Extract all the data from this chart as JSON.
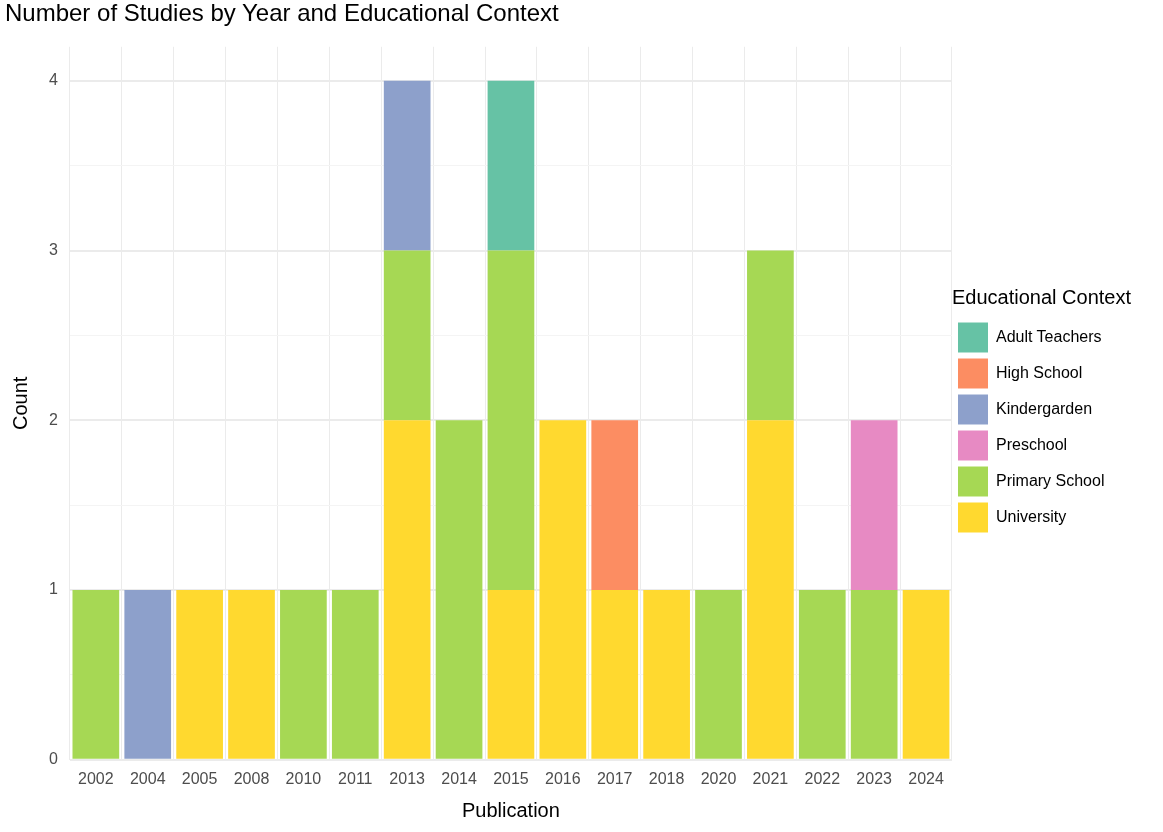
{
  "chart_data": {
    "type": "bar",
    "title": "Number of Studies by Year and Educational Context",
    "xlabel": "Publication",
    "ylabel": "Count",
    "legend_title": "Educational Context",
    "categories": [
      "2002",
      "2004",
      "2005",
      "2008",
      "2010",
      "2011",
      "2013",
      "2014",
      "2015",
      "2016",
      "2017",
      "2018",
      "2020",
      "2021",
      "2022",
      "2023",
      "2024"
    ],
    "stacked": true,
    "ylim": [
      0,
      4.2
    ],
    "yticks": [
      0,
      {
        "value": 0.5,
        "label": null
      },
      1,
      {
        "value": 1.5,
        "label": null
      },
      2,
      {
        "value": 2.5,
        "label": null
      },
      3,
      {
        "value": 3.5,
        "label": null
      },
      4
    ],
    "grid": true,
    "legend": "right",
    "series": [
      {
        "name": "University",
        "color": "#ffd92f",
        "values": [
          null,
          null,
          1,
          1,
          null,
          null,
          2,
          null,
          1,
          2,
          1,
          1,
          null,
          2,
          null,
          null,
          1
        ]
      },
      {
        "name": "Primary School",
        "color": "#a6d854",
        "values": [
          1,
          null,
          null,
          null,
          1,
          1,
          1,
          2,
          2,
          null,
          null,
          null,
          1,
          1,
          1,
          1,
          null
        ]
      },
      {
        "name": "Preschool",
        "color": "#e78ac3",
        "values": [
          null,
          null,
          null,
          null,
          null,
          null,
          null,
          null,
          null,
          null,
          null,
          null,
          null,
          null,
          null,
          1,
          null
        ]
      },
      {
        "name": "Kindergarden",
        "color": "#8da0cb",
        "values": [
          null,
          1,
          null,
          null,
          null,
          null,
          1,
          null,
          null,
          null,
          null,
          null,
          null,
          null,
          null,
          null,
          null
        ]
      },
      {
        "name": "High School",
        "color": "#fc8d62",
        "values": [
          null,
          null,
          null,
          null,
          null,
          null,
          null,
          null,
          null,
          null,
          1,
          null,
          null,
          null,
          null,
          null,
          null
        ]
      },
      {
        "name": "Adult Teachers",
        "color": "#66c2a5",
        "values": [
          null,
          null,
          null,
          null,
          null,
          null,
          null,
          null,
          1,
          null,
          null,
          null,
          null,
          null,
          null,
          null,
          null
        ]
      }
    ]
  }
}
